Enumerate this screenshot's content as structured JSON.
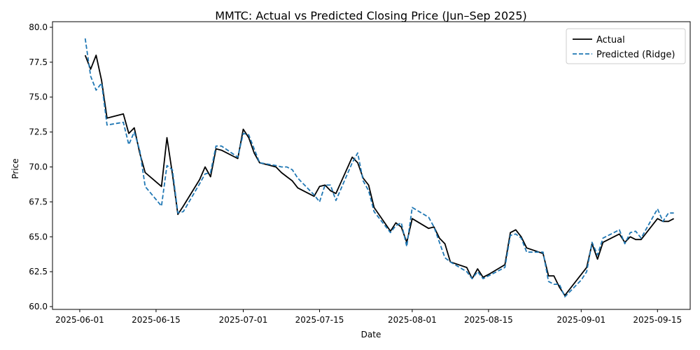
{
  "chart_data": {
    "type": "line",
    "title": "MMTC: Actual vs Predicted Closing Price (Jun–Sep 2025)",
    "xlabel": "Date",
    "ylabel": "Price",
    "x_ticks": [
      "2025-06-01",
      "2025-06-15",
      "2025-07-01",
      "2025-07-15",
      "2025-08-01",
      "2025-08-15",
      "2025-09-01",
      "2025-09-15"
    ],
    "y_ticks": [
      "60.0",
      "62.5",
      "65.0",
      "67.5",
      "70.0",
      "72.5",
      "75.0",
      "77.5",
      "80.0"
    ],
    "xlim": [
      "2025-05-27",
      "2025-09-21"
    ],
    "ylim": [
      59.8,
      80.4
    ],
    "grid": false,
    "legend_position": "top-right",
    "x": [
      "2025-06-02",
      "2025-06-03",
      "2025-06-04",
      "2025-06-05",
      "2025-06-06",
      "2025-06-09",
      "2025-06-10",
      "2025-06-11",
      "2025-06-12",
      "2025-06-13",
      "2025-06-16",
      "2025-06-17",
      "2025-06-18",
      "2025-06-19",
      "2025-06-20",
      "2025-06-23",
      "2025-06-24",
      "2025-06-25",
      "2025-06-26",
      "2025-06-27",
      "2025-06-30",
      "2025-07-01",
      "2025-07-02",
      "2025-07-03",
      "2025-07-04",
      "2025-07-07",
      "2025-07-08",
      "2025-07-09",
      "2025-07-10",
      "2025-07-11",
      "2025-07-14",
      "2025-07-15",
      "2025-07-16",
      "2025-07-17",
      "2025-07-18",
      "2025-07-21",
      "2025-07-22",
      "2025-07-23",
      "2025-07-24",
      "2025-07-25",
      "2025-07-28",
      "2025-07-29",
      "2025-07-30",
      "2025-07-31",
      "2025-08-01",
      "2025-08-04",
      "2025-08-05",
      "2025-08-06",
      "2025-08-07",
      "2025-08-08",
      "2025-08-11",
      "2025-08-12",
      "2025-08-13",
      "2025-08-14",
      "2025-08-15",
      "2025-08-18",
      "2025-08-19",
      "2025-08-20",
      "2025-08-21",
      "2025-08-22",
      "2025-08-25",
      "2025-08-26",
      "2025-08-27",
      "2025-08-28",
      "2025-08-29",
      "2025-09-01",
      "2025-09-02",
      "2025-09-03",
      "2025-09-04",
      "2025-09-05",
      "2025-09-08",
      "2025-09-09",
      "2025-09-10",
      "2025-09-11",
      "2025-09-12",
      "2025-09-15",
      "2025-09-16",
      "2025-09-17",
      "2025-09-18"
    ],
    "series": [
      {
        "name": "Actual",
        "color": "#000000",
        "style": "solid",
        "values": [
          78.0,
          77.0,
          78.0,
          76.2,
          73.5,
          73.8,
          72.4,
          72.8,
          71.0,
          69.6,
          68.6,
          72.1,
          69.5,
          66.6,
          67.2,
          69.1,
          70.0,
          69.3,
          71.3,
          71.2,
          70.6,
          72.7,
          72.1,
          71.0,
          70.3,
          70.0,
          69.6,
          69.3,
          69.0,
          68.5,
          67.9,
          68.6,
          68.7,
          68.3,
          68.1,
          70.7,
          70.3,
          69.2,
          68.7,
          67.1,
          65.4,
          66.0,
          65.7,
          64.6,
          66.3,
          65.6,
          65.7,
          64.9,
          64.5,
          63.2,
          62.8,
          62.0,
          62.7,
          62.1,
          62.3,
          63.0,
          65.3,
          65.5,
          65.0,
          64.2,
          63.8,
          62.2,
          62.2,
          61.4,
          60.8,
          62.3,
          62.8,
          64.5,
          63.4,
          64.6,
          65.2,
          64.6,
          65.0,
          64.8,
          64.8,
          66.3,
          66.1,
          66.1,
          66.3
        ]
      },
      {
        "name": "Predicted (Ridge)",
        "color": "#1f77b4",
        "style": "dashed",
        "values": [
          79.2,
          76.5,
          75.5,
          76.0,
          73.0,
          73.2,
          71.6,
          72.5,
          71.2,
          68.6,
          67.2,
          70.1,
          69.8,
          66.7,
          66.8,
          68.8,
          69.5,
          69.6,
          71.5,
          71.5,
          70.7,
          72.4,
          72.3,
          71.3,
          70.3,
          70.1,
          70.0,
          70.0,
          69.8,
          69.2,
          68.0,
          67.5,
          68.7,
          68.7,
          67.6,
          70.3,
          71.0,
          69.0,
          68.3,
          66.8,
          65.3,
          65.8,
          66.0,
          64.3,
          67.1,
          66.4,
          65.7,
          64.6,
          63.5,
          63.2,
          62.5,
          62.0,
          62.5,
          62.0,
          62.2,
          62.8,
          65.1,
          65.2,
          64.9,
          63.9,
          63.9,
          61.8,
          61.6,
          61.6,
          60.7,
          61.9,
          62.5,
          64.6,
          63.7,
          64.9,
          65.5,
          64.5,
          65.3,
          65.4,
          64.9,
          67.0,
          66.1,
          66.7,
          66.7
        ]
      }
    ]
  }
}
